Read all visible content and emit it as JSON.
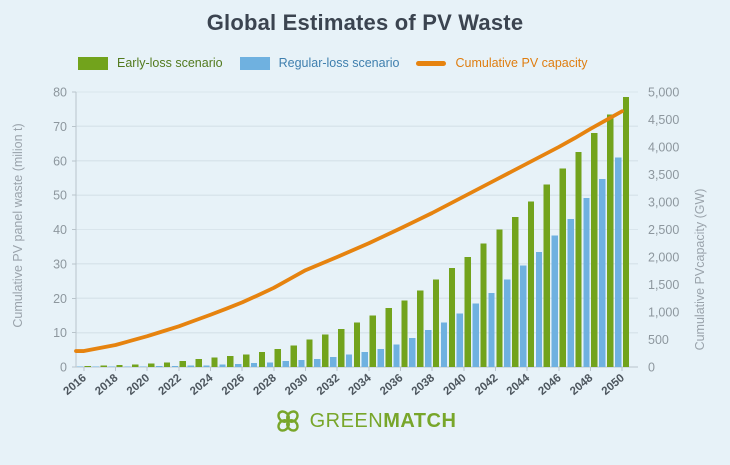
{
  "title": "Global Estimates of PV Waste",
  "legend": [
    {
      "id": "early",
      "label": "Early-loss scenario",
      "swatch": "rect",
      "color": "#72a31c",
      "text_color": "#527a1e"
    },
    {
      "id": "regular",
      "label": "Regular-loss scenario",
      "swatch": "rect",
      "color": "#6fb1e0",
      "text_color": "#3f7fae"
    },
    {
      "id": "capacity",
      "label": "Cumulative PV capacity",
      "swatch": "line",
      "color": "#e6830f",
      "text_color": "#df7d0f"
    }
  ],
  "chart_data": {
    "type": "bar+line",
    "title": "Global Estimates of PV Waste",
    "categories": [
      2016,
      2017,
      2018,
      2019,
      2020,
      2021,
      2022,
      2023,
      2024,
      2025,
      2026,
      2027,
      2028,
      2029,
      2030,
      2031,
      2032,
      2033,
      2034,
      2035,
      2036,
      2037,
      2038,
      2039,
      2040,
      2041,
      2042,
      2043,
      2044,
      2045,
      2046,
      2047,
      2048,
      2049,
      2050
    ],
    "x_tick_labels": [
      "2016",
      "2018",
      "2020",
      "2022",
      "2024",
      "2026",
      "2028",
      "2030",
      "2032",
      "2034",
      "2036",
      "2038",
      "2040",
      "2042",
      "2044",
      "2046",
      "2048",
      "2050"
    ],
    "group_order": [
      "regular",
      "early"
    ],
    "series": [
      {
        "id": "regular",
        "name": "Regular-loss scenario",
        "type": "bar",
        "axis": "left",
        "color": "#6fb1e0",
        "values": [
          0.05,
          0.07,
          0.1,
          0.15,
          0.2,
          0.25,
          0.3,
          0.4,
          0.5,
          0.7,
          0.9,
          1.1,
          1.3,
          1.7,
          2.0,
          2.4,
          2.9,
          3.6,
          4.3,
          5.3,
          6.5,
          8.5,
          10.7,
          13.0,
          15.6,
          18.5,
          21.6,
          25.5,
          29.5,
          33.4,
          38.3,
          43.1,
          49.2,
          54.7,
          60.9
        ]
      },
      {
        "id": "early",
        "name": "Early-loss scenario",
        "type": "bar",
        "axis": "left",
        "color": "#72a31c",
        "values": [
          0.35,
          0.45,
          0.55,
          0.8,
          1.0,
          1.3,
          1.8,
          2.3,
          2.8,
          3.2,
          3.7,
          4.4,
          5.2,
          6.3,
          8.0,
          9.4,
          11.1,
          12.9,
          15.0,
          17.2,
          19.4,
          22.2,
          25.5,
          28.8,
          32.0,
          36.0,
          40.0,
          43.7,
          48.2,
          53.1,
          57.7,
          62.6,
          68.1,
          73.5,
          78.5
        ]
      },
      {
        "id": "capacity",
        "name": "Cumulative PV capacity",
        "type": "line",
        "axis": "right",
        "color": "#e6830f",
        "values": [
          290,
          345,
          400,
          480,
          560,
          650,
          740,
          845,
          950,
          1060,
          1175,
          1305,
          1440,
          1600,
          1760,
          1880,
          2000,
          2125,
          2250,
          2385,
          2520,
          2660,
          2800,
          2950,
          3100,
          3250,
          3400,
          3550,
          3700,
          3850,
          4000,
          4160,
          4330,
          4490,
          4650
        ]
      }
    ],
    "left_axis": {
      "label": "Cumulative PV panel waste (milion t)",
      "min": 0,
      "max": 80,
      "step": 10,
      "grid": true
    },
    "right_axis": {
      "label": "Cumulative PVcapacity (GW)",
      "min": 0,
      "max": 5000,
      "step": 500,
      "grid": false,
      "thousands_separator": true
    },
    "legend_position": "top-left"
  },
  "footer": {
    "logo_green": "GREEN",
    "logo_match": "MATCH",
    "logo_color": "#78a62a"
  },
  "colors": {
    "background": "#e7f2f8",
    "title": "#3b4450",
    "gridline": "#d9e5ec",
    "axis_line": "#b9c4cb",
    "axis_tick_text": "#8d979e",
    "axis_title_text": "#9aa3ab",
    "year_tick_text": "#4d565e"
  }
}
